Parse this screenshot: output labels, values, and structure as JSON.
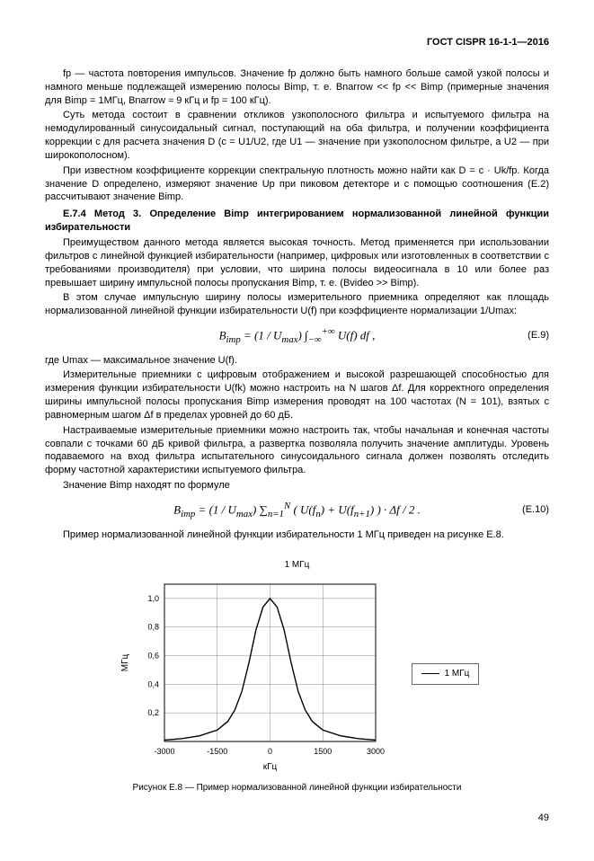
{
  "header": {
    "standard": "ГОСТ CISPR 16-1-1—2016"
  },
  "body": {
    "p1": "fp — частота повторения импульсов. Значение fp должно быть намного больше самой узкой полосы и намного меньше подлежащей измерению полосы Bimp, т. е. Bnarrow << fp << Bimp (примерные значения для Bimp = 1МГц, Bnarrow ≈ 9 кГц и fp = 100 кГц).",
    "p2": "Суть метода состоит в сравнении откликов узкополосного фильтра и испытуемого фильтра на немодулированный синусоидальный сигнал, поступающий на оба фильтра, и получении коэффициента коррекции c для расчета значения D (c = U1/U2, где U1 — значение при узкополосном фильтре, а U2 — при широкополосном).",
    "p3": "При известном коэффициенте коррекции спектральную плотность можно найти как D = c · Uk/fp. Когда значение D определено, измеряют значение Up при пиковом детекторе и с помощью соотношения (E.2) рассчитывают значение Bimp.",
    "section_title": "E.7.4 Метод 3. Определение Bimp интегрированием нормализованной линейной функции избирательности",
    "p4": "Преимуществом данного метода является высокая точность. Метод применяется при использовании фильтров с линейной функцией избирательности (например, цифровых или изготовленных в соответствии с требованиями производителя) при условии, что ширина полосы видеосигнала в 10 или более раз превышает ширину импульсной полосы пропускания Bimp, т. е. (Bvideo >> Bimp).",
    "p5": "В этом случае импульсную ширину полосы измерительного приемника определяют как площадь нормализованной линейной функции избирательности U(f) при коэффициенте нормализации 1/Umax:",
    "formula1_label": "(E.9)",
    "p6": "где Umax — максимальное значение U(f).",
    "p7": "Измерительные приемники с цифровым отображением и высокой разрешающей способностью для измерения функции избирательности U(fk) можно настроить на N шагов Δf. Для корректного определения ширины импульсной полосы пропускания Bimp измерения проводят на 100 частотах (N = 101), взятых с равномерным шагом Δf в пределах уровней до 60 дБ.",
    "p8": "Настраиваемые измерительные приемники можно настроить так, чтобы начальная и конечная частоты совпали с точками 60 дБ кривой фильтра, а развертка позволяла получить значение амплитуды. Уровень подаваемого на вход фильтра испытательного синусоидального сигнала должен позволять отследить форму частотной характеристики испытуемого фильтра.",
    "p9": "Значение Bimp находят по формуле",
    "formula2_label": "(E.10)",
    "p10": "Пример нормализованной линейной функции избирательности 1 МГц приведен на рисунке E.8."
  },
  "chart": {
    "title_top": "1 МГц",
    "y_label": "МГц",
    "x_label": "кГц",
    "legend": "1 МГц",
    "x_ticks": [
      "-3000",
      "-1500",
      "0",
      "1500",
      "3000"
    ],
    "y_ticks": [
      "0,2",
      "0,4",
      "0,6",
      "0,8",
      "1,0"
    ],
    "colors": {
      "bg": "#ffffff",
      "grid": "#888888",
      "line": "#000000",
      "axis": "#000000"
    },
    "curve_points": [
      [
        -3000,
        0.01
      ],
      [
        -2500,
        0.02
      ],
      [
        -2000,
        0.04
      ],
      [
        -1500,
        0.08
      ],
      [
        -1200,
        0.14
      ],
      [
        -1000,
        0.22
      ],
      [
        -800,
        0.35
      ],
      [
        -600,
        0.55
      ],
      [
        -400,
        0.78
      ],
      [
        -200,
        0.94
      ],
      [
        0,
        1.0
      ],
      [
        200,
        0.94
      ],
      [
        400,
        0.78
      ],
      [
        600,
        0.55
      ],
      [
        800,
        0.35
      ],
      [
        1000,
        0.22
      ],
      [
        1200,
        0.14
      ],
      [
        1500,
        0.08
      ],
      [
        2000,
        0.04
      ],
      [
        2500,
        0.02
      ],
      [
        3000,
        0.01
      ]
    ],
    "xlim": [
      -3000,
      3000
    ],
    "ylim": [
      0,
      1.1
    ],
    "caption": "Рисунок E.8 — Пример нормализованной линейной функции избирательности"
  },
  "page_number": "49"
}
